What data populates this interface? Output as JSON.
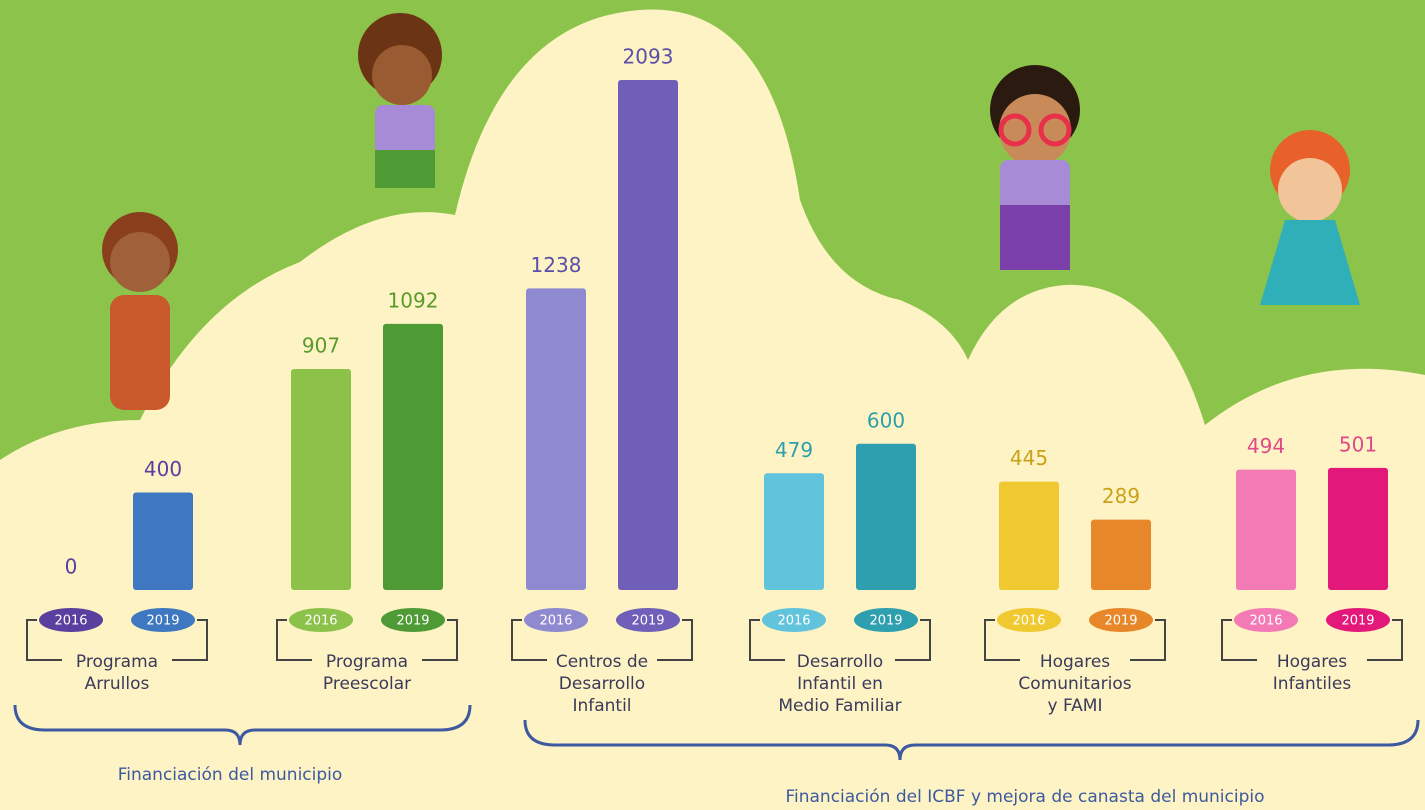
{
  "chart_data": {
    "type": "bar",
    "categories": [
      [
        "Programa",
        "Arrullos"
      ],
      [
        "Programa",
        "Preescolar"
      ],
      [
        "Centros de",
        "Desarrollo",
        "Infantil"
      ],
      [
        "Desarrollo",
        "Infantil en",
        "Medio Familiar"
      ],
      [
        "Hogares",
        "Comunitarios",
        "y FAMI"
      ],
      [
        "Hogares",
        "Infantiles"
      ]
    ],
    "series": [
      {
        "name": "2016",
        "values": [
          0,
          907,
          1238,
          479,
          445,
          494
        ],
        "colors": [
          "#5a3f9e",
          "#8cc24a",
          "#8f89d0",
          "#62c4dc",
          "#f0c830",
          "#f37ab5"
        ]
      },
      {
        "name": "2019",
        "values": [
          400,
          1092,
          2093,
          600,
          289,
          501
        ],
        "colors": [
          "#3f78c0",
          "#4e9a35",
          "#6f5fb8",
          "#2e9fae",
          "#e8872a",
          "#e2187b"
        ]
      }
    ],
    "label_colors": [
      "#5a3f9e",
      "#5a9a2a",
      "#5a4fa8",
      "#2e9fae",
      "#c9a21a",
      "#e04a8a"
    ],
    "groups": [
      {
        "label": "Financiación del municipio"
      },
      {
        "label": "Financiación del ICBF y mejora de canasta del municipio"
      }
    ]
  }
}
